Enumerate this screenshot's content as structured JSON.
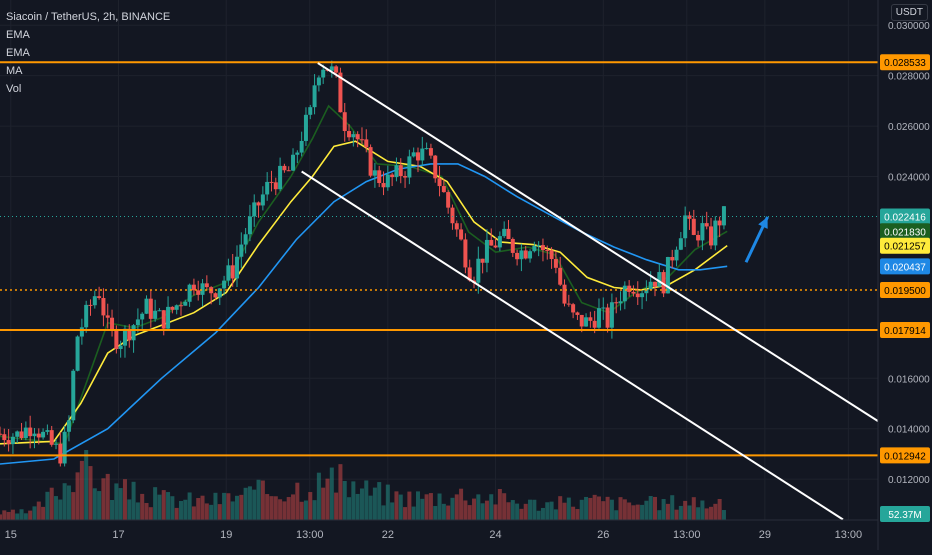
{
  "header": {
    "title": "Siacoin / TetherUS, 2h, BINANCE",
    "indicators": [
      "EMA",
      "EMA",
      "MA",
      "Vol"
    ],
    "currency": "USDT"
  },
  "chart_data": {
    "type": "candlestick",
    "symbol": "Siacoin / TetherUS",
    "interval": "2h",
    "exchange": "BINANCE",
    "y_ticks": [
      "0.030000",
      "0.028000",
      "0.026000",
      "0.024000",
      "0.016000",
      "0.014000",
      "0.012000"
    ],
    "x_ticks": [
      {
        "label": "15",
        "t": 0.2
      },
      {
        "label": "17",
        "t": 2.2
      },
      {
        "label": "19",
        "t": 4.2
      },
      {
        "label": "13:00",
        "t": 5.75
      },
      {
        "label": "22",
        "t": 7.2
      },
      {
        "label": "24",
        "t": 9.2
      },
      {
        "label": "26",
        "t": 11.2
      },
      {
        "label": "13:00",
        "t": 12.75
      },
      {
        "label": "29",
        "t": 14.2
      },
      {
        "label": "13:00",
        "t": 15.75
      }
    ],
    "xlim": [
      0,
      16.3
    ],
    "ylim": [
      0.01038,
      0.031
    ],
    "horizontal_levels": [
      {
        "value": 0.028533,
        "label": "0.028533",
        "color": "#ff9800",
        "style": "solid"
      },
      {
        "value": 0.017914,
        "label": "0.017914",
        "color": "#ff9800",
        "style": "solid"
      },
      {
        "value": 0.012942,
        "label": "0.012942",
        "color": "#ff9800",
        "style": "solid"
      },
      {
        "value": 0.0195,
        "label": "0.019500",
        "color": "#ff9800",
        "style": "dotted"
      }
    ],
    "price_labels": [
      {
        "value": 0.022416,
        "label": "0.022416",
        "color": "#26a69a"
      },
      {
        "value": 0.02183,
        "label": "0.021830",
        "color": "#1b5e20"
      },
      {
        "value": 0.021257,
        "label": "0.021257",
        "color": "#ffeb3b",
        "text_color": "#000000"
      },
      {
        "value": 0.020437,
        "label": "0.020437",
        "color": "#1e88e5"
      }
    ],
    "volume_label": "52.37M",
    "last_price": 0.022416,
    "channel": {
      "upper": [
        [
          5.9,
          0.0285
        ],
        [
          16.3,
          0.0143
        ]
      ],
      "lower": [
        [
          5.6,
          0.0242
        ],
        [
          15.65,
          0.0104
        ]
      ]
    },
    "arrow": {
      "from": [
        13.85,
        0.0206
      ],
      "to": [
        14.25,
        0.0224
      ],
      "color": "#1e88e5"
    },
    "series": [
      {
        "name": "price",
        "points": [
          [
            0,
            0.0138
          ],
          [
            0.4,
            0.01375
          ],
          [
            0.7,
            0.0142
          ],
          [
            1.0,
            0.0134
          ],
          [
            1.2,
            0.013
          ],
          [
            1.35,
            0.014
          ],
          [
            1.5,
            0.0176
          ],
          [
            1.7,
            0.0186
          ],
          [
            1.9,
            0.0196
          ],
          [
            2.1,
            0.0178
          ],
          [
            2.3,
            0.0175
          ],
          [
            2.5,
            0.018
          ],
          [
            2.8,
            0.0188
          ],
          [
            3.1,
            0.0183
          ],
          [
            3.4,
            0.019
          ],
          [
            3.7,
            0.0199
          ],
          [
            3.9,
            0.0194
          ],
          [
            4.1,
            0.0196
          ],
          [
            4.4,
            0.0203
          ],
          [
            4.6,
            0.0216
          ],
          [
            4.9,
            0.023
          ],
          [
            5.1,
            0.0238
          ],
          [
            5.3,
            0.024
          ],
          [
            5.5,
            0.0243
          ],
          [
            5.7,
            0.0258
          ],
          [
            5.85,
            0.0265
          ],
          [
            5.95,
            0.0282
          ],
          [
            6.1,
            0.0285
          ],
          [
            6.3,
            0.028
          ],
          [
            6.45,
            0.0262
          ],
          [
            6.65,
            0.0258
          ],
          [
            6.85,
            0.0249
          ],
          [
            7.05,
            0.024
          ],
          [
            7.3,
            0.0238
          ],
          [
            7.6,
            0.0243
          ],
          [
            7.8,
            0.025
          ],
          [
            8.0,
            0.0248
          ],
          [
            8.2,
            0.024
          ],
          [
            8.45,
            0.0225
          ],
          [
            8.65,
            0.0213
          ],
          [
            8.85,
            0.02
          ],
          [
            9.0,
            0.0208
          ],
          [
            9.2,
            0.0212
          ],
          [
            9.4,
            0.0216
          ],
          [
            9.6,
            0.0212
          ],
          [
            9.8,
            0.021
          ],
          [
            10.0,
            0.0216
          ],
          [
            10.2,
            0.021
          ],
          [
            10.4,
            0.0206
          ],
          [
            10.55,
            0.019
          ],
          [
            10.75,
            0.0183
          ],
          [
            11.0,
            0.0182
          ],
          [
            11.2,
            0.0186
          ],
          [
            11.35,
            0.0182
          ],
          [
            11.55,
            0.0192
          ],
          [
            11.75,
            0.0198
          ],
          [
            12.0,
            0.0196
          ],
          [
            12.2,
            0.02
          ],
          [
            12.4,
            0.0198
          ],
          [
            12.6,
            0.0212
          ],
          [
            12.8,
            0.0224
          ],
          [
            12.95,
            0.0215
          ],
          [
            13.1,
            0.022
          ],
          [
            13.25,
            0.0214
          ],
          [
            13.4,
            0.0222
          ],
          [
            13.5,
            0.02242
          ]
        ]
      },
      {
        "name": "EMA fast",
        "color": "#1b5e20",
        "points": [
          [
            0,
            0.0137
          ],
          [
            1.2,
            0.0134
          ],
          [
            1.6,
            0.0158
          ],
          [
            2.0,
            0.0182
          ],
          [
            2.5,
            0.018
          ],
          [
            3.0,
            0.0184
          ],
          [
            3.6,
            0.0193
          ],
          [
            4.2,
            0.0198
          ],
          [
            4.8,
            0.0222
          ],
          [
            5.4,
            0.024
          ],
          [
            5.8,
            0.0255
          ],
          [
            6.1,
            0.0268
          ],
          [
            6.5,
            0.026
          ],
          [
            7.0,
            0.0245
          ],
          [
            7.6,
            0.0244
          ],
          [
            8.2,
            0.024
          ],
          [
            8.7,
            0.0218
          ],
          [
            9.2,
            0.021
          ],
          [
            9.8,
            0.0212
          ],
          [
            10.3,
            0.0209
          ],
          [
            10.8,
            0.019
          ],
          [
            11.3,
            0.0186
          ],
          [
            11.8,
            0.0194
          ],
          [
            12.4,
            0.02
          ],
          [
            12.9,
            0.0211
          ],
          [
            13.5,
            0.02183
          ]
        ]
      },
      {
        "name": "EMA slow",
        "color": "#ffeb3b",
        "points": [
          [
            0,
            0.0134
          ],
          [
            1.0,
            0.0135
          ],
          [
            1.5,
            0.015
          ],
          [
            2.0,
            0.017
          ],
          [
            2.5,
            0.0177
          ],
          [
            3.0,
            0.0181
          ],
          [
            3.6,
            0.0186
          ],
          [
            4.2,
            0.0194
          ],
          [
            4.8,
            0.0213
          ],
          [
            5.4,
            0.023
          ],
          [
            5.8,
            0.024
          ],
          [
            6.2,
            0.0252
          ],
          [
            6.6,
            0.0254
          ],
          [
            7.2,
            0.0246
          ],
          [
            7.8,
            0.0244
          ],
          [
            8.3,
            0.0238
          ],
          [
            8.8,
            0.0222
          ],
          [
            9.3,
            0.0214
          ],
          [
            9.9,
            0.0213
          ],
          [
            10.4,
            0.021
          ],
          [
            10.9,
            0.02
          ],
          [
            11.4,
            0.0196
          ],
          [
            11.9,
            0.0195
          ],
          [
            12.4,
            0.0197
          ],
          [
            12.9,
            0.0203
          ],
          [
            13.5,
            0.02126
          ]
        ]
      },
      {
        "name": "MA",
        "color": "#2196f3",
        "points": [
          [
            0,
            0.0126
          ],
          [
            1.0,
            0.0128
          ],
          [
            2.0,
            0.014
          ],
          [
            3.0,
            0.016
          ],
          [
            4.0,
            0.0178
          ],
          [
            4.8,
            0.0196
          ],
          [
            5.5,
            0.0215
          ],
          [
            6.2,
            0.023
          ],
          [
            6.8,
            0.0238
          ],
          [
            7.4,
            0.0243
          ],
          [
            8.0,
            0.0245
          ],
          [
            8.5,
            0.0245
          ],
          [
            9.0,
            0.024
          ],
          [
            9.6,
            0.0232
          ],
          [
            10.2,
            0.0225
          ],
          [
            10.8,
            0.0218
          ],
          [
            11.4,
            0.0212
          ],
          [
            12.0,
            0.0207
          ],
          [
            12.6,
            0.0203
          ],
          [
            13.0,
            0.0203
          ],
          [
            13.5,
            0.02044
          ]
        ]
      }
    ],
    "volume_profile": [
      [
        0,
        0.1
      ],
      [
        0.6,
        0.12
      ],
      [
        1.2,
        0.55
      ],
      [
        1.5,
        0.95
      ],
      [
        1.8,
        0.65
      ],
      [
        2.2,
        0.45
      ],
      [
        2.8,
        0.35
      ],
      [
        3.4,
        0.3
      ],
      [
        4.0,
        0.3
      ],
      [
        4.6,
        0.4
      ],
      [
        5.2,
        0.45
      ],
      [
        5.8,
        0.55
      ],
      [
        6.2,
        0.6
      ],
      [
        6.8,
        0.45
      ],
      [
        7.4,
        0.35
      ],
      [
        8.0,
        0.35
      ],
      [
        8.6,
        0.4
      ],
      [
        9.2,
        0.35
      ],
      [
        9.8,
        0.25
      ],
      [
        10.4,
        0.25
      ],
      [
        11.0,
        0.3
      ],
      [
        11.6,
        0.25
      ],
      [
        12.2,
        0.25
      ],
      [
        12.8,
        0.3
      ],
      [
        13.5,
        0.2
      ]
    ]
  }
}
